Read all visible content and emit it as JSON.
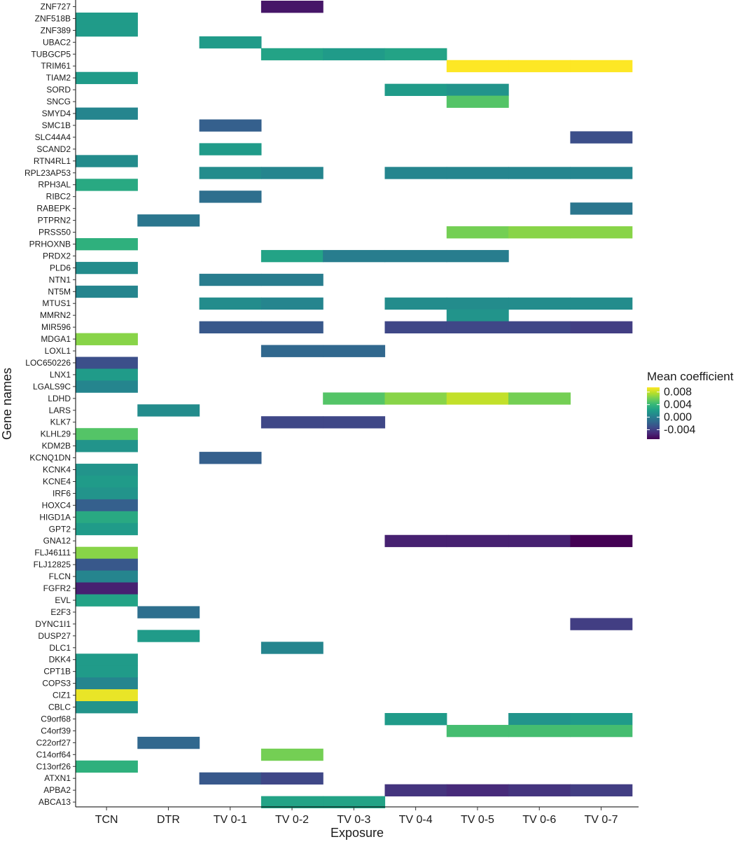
{
  "chart_data": {
    "type": "heatmap",
    "xlabel": "Exposure",
    "ylabel": "Gene names",
    "x": [
      "TCN",
      "DTR",
      "TV 0-1",
      "TV 0-2",
      "TV 0-3",
      "TV 0-4",
      "TV 0-5",
      "TV 0-6",
      "TV 0-7"
    ],
    "y": [
      "ZNF727",
      "ZNF518B",
      "ZNF389",
      "UBAC2",
      "TUBGCP5",
      "TRIM61",
      "TIAM2",
      "SORD",
      "SNCG",
      "SMYD4",
      "SMC1B",
      "SLC44A4",
      "SCAND2",
      "RTN4RL1",
      "RPL23AP53",
      "RPH3AL",
      "RIBC2",
      "RABEPK",
      "PTPRN2",
      "PRSS50",
      "PRHOXNB",
      "PRDX2",
      "PLD6",
      "NTN1",
      "NT5M",
      "MTUS1",
      "MMRN2",
      "MIR596",
      "MDGA1",
      "LOXL1",
      "LOC650226",
      "LNX1",
      "LGALS9C",
      "LDHD",
      "LARS",
      "KLK7",
      "KLHL29",
      "KDM2B",
      "KCNQ1DN",
      "KCNK4",
      "KCNE4",
      "IRF6",
      "HOXC4",
      "HIGD1A",
      "GPT2",
      "GNA12",
      "FLJ46111",
      "FLJ12825",
      "FLCN",
      "FGFR2",
      "EVL",
      "E2F3",
      "DYNC1I1",
      "DUSP27",
      "DLC1",
      "DKK4",
      "CPT1B",
      "COPS3",
      "CIZ1",
      "CBLC",
      "C9orf68",
      "C4orf39",
      "C22orf27",
      "C14orf64",
      "C13orf26",
      "ATXN1",
      "APBA2",
      "ABCA13"
    ],
    "cells": [
      [
        "ZNF727",
        "TV 0-2",
        -0.006
      ],
      [
        "ZNF518B",
        "TCN",
        0.002
      ],
      [
        "ZNF389",
        "TCN",
        0.002
      ],
      [
        "UBAC2",
        "TV 0-1",
        0.002
      ],
      [
        "TUBGCP5",
        "TV 0-2",
        0.0025
      ],
      [
        "TUBGCP5",
        "TV 0-3",
        0.002
      ],
      [
        "TUBGCP5",
        "TV 0-4",
        0.0025
      ],
      [
        "TRIM61",
        "TV 0-5",
        0.0095
      ],
      [
        "TRIM61",
        "TV 0-6",
        0.0095
      ],
      [
        "TRIM61",
        "TV 0-7",
        0.0095
      ],
      [
        "TIAM2",
        "TCN",
        0.002
      ],
      [
        "SORD",
        "TV 0-4",
        0.002
      ],
      [
        "SORD",
        "TV 0-5",
        0.0015
      ],
      [
        "SNCG",
        "TV 0-5",
        0.005
      ],
      [
        "SMYD4",
        "TCN",
        0.0005
      ],
      [
        "SMC1B",
        "TV 0-1",
        -0.002
      ],
      [
        "SLC44A4",
        "TV 0-7",
        -0.003
      ],
      [
        "SCAND2",
        "TV 0-1",
        0.002
      ],
      [
        "RTN4RL1",
        "TCN",
        0.001
      ],
      [
        "RPL23AP53",
        "TV 0-1",
        0.001
      ],
      [
        "RPL23AP53",
        "TV 0-2",
        0.0005
      ],
      [
        "RPL23AP53",
        "TV 0-4",
        0.0005
      ],
      [
        "RPL23AP53",
        "TV 0-5",
        0.0005
      ],
      [
        "RPL23AP53",
        "TV 0-6",
        0.0005
      ],
      [
        "RPL23AP53",
        "TV 0-7",
        0.0005
      ],
      [
        "RPH3AL",
        "TCN",
        0.003
      ],
      [
        "RIBC2",
        "TV 0-1",
        -0.001
      ],
      [
        "RABEPK",
        "TV 0-7",
        -0.0005
      ],
      [
        "PTPRN2",
        "DTR",
        -0.0005
      ],
      [
        "PRSS50",
        "TV 0-5",
        0.006
      ],
      [
        "PRSS50",
        "TV 0-6",
        0.0065
      ],
      [
        "PRSS50",
        "TV 0-7",
        0.0065
      ],
      [
        "PRHOXNB",
        "TCN",
        0.0035
      ],
      [
        "PRDX2",
        "TV 0-2",
        0.0025
      ],
      [
        "PRDX2",
        "TV 0-3",
        0
      ],
      [
        "PRDX2",
        "TV 0-4",
        0
      ],
      [
        "PRDX2",
        "TV 0-5",
        0
      ],
      [
        "PLD6",
        "TCN",
        0.001
      ],
      [
        "NTN1",
        "TV 0-1",
        0
      ],
      [
        "NTN1",
        "TV 0-2",
        0
      ],
      [
        "NT5M",
        "TCN",
        0.0005
      ],
      [
        "MTUS1",
        "TV 0-1",
        0.001
      ],
      [
        "MTUS1",
        "TV 0-2",
        0.0005
      ],
      [
        "MTUS1",
        "TV 0-4",
        0.001
      ],
      [
        "MTUS1",
        "TV 0-5",
        0.001
      ],
      [
        "MTUS1",
        "TV 0-6",
        0.001
      ],
      [
        "MTUS1",
        "TV 0-7",
        0.001
      ],
      [
        "MMRN2",
        "TV 0-5",
        0.0015
      ],
      [
        "MIR596",
        "TV 0-1",
        -0.0025
      ],
      [
        "MIR596",
        "TV 0-2",
        -0.0025
      ],
      [
        "MIR596",
        "TV 0-4",
        -0.0035
      ],
      [
        "MIR596",
        "TV 0-5",
        -0.0035
      ],
      [
        "MIR596",
        "TV 0-6",
        -0.0035
      ],
      [
        "MIR596",
        "TV 0-7",
        -0.004
      ],
      [
        "MDGA1",
        "TCN",
        0.0065
      ],
      [
        "LOXL1",
        "TV 0-2",
        -0.0015
      ],
      [
        "LOXL1",
        "TV 0-3",
        -0.0015
      ],
      [
        "LOC650226",
        "TCN",
        -0.003
      ],
      [
        "LNX1",
        "TCN",
        0.002
      ],
      [
        "LGALS9C",
        "TCN",
        0.0005
      ],
      [
        "LDHD",
        "TV 0-3",
        0.005
      ],
      [
        "LDHD",
        "TV 0-4",
        0.0065
      ],
      [
        "LDHD",
        "TV 0-5",
        0.008
      ],
      [
        "LDHD",
        "TV 0-6",
        0.006
      ],
      [
        "LARS",
        "DTR",
        0.001
      ],
      [
        "KLK7",
        "TV 0-2",
        -0.0035
      ],
      [
        "KLK7",
        "TV 0-3",
        -0.0035
      ],
      [
        "KLHL29",
        "TCN",
        0.005
      ],
      [
        "KDM2B",
        "TCN",
        0.0015
      ],
      [
        "KCNQ1DN",
        "TV 0-1",
        -0.002
      ],
      [
        "KCNK4",
        "TCN",
        0.0015
      ],
      [
        "KCNE4",
        "TCN",
        0.002
      ],
      [
        "IRF6",
        "TCN",
        0.0015
      ],
      [
        "HOXC4",
        "TCN",
        -0.002
      ],
      [
        "HIGD1A",
        "TCN",
        0.003
      ],
      [
        "GPT2",
        "TCN",
        0.002
      ],
      [
        "GNA12",
        "TV 0-4",
        -0.0055
      ],
      [
        "GNA12",
        "TV 0-5",
        -0.0055
      ],
      [
        "GNA12",
        "TV 0-6",
        -0.0055
      ],
      [
        "GNA12",
        "TV 0-7",
        -0.007
      ],
      [
        "FLJ46111",
        "TCN",
        0.0065
      ],
      [
        "FLJ12825",
        "TCN",
        -0.0025
      ],
      [
        "FLCN",
        "TCN",
        0.0005
      ],
      [
        "FGFR2",
        "TCN",
        -0.0055
      ],
      [
        "EVL",
        "TCN",
        0.0025
      ],
      [
        "E2F3",
        "DTR",
        -0.001
      ],
      [
        "DYNC1I1",
        "TV 0-7",
        -0.004
      ],
      [
        "DUSP27",
        "DTR",
        0.002
      ],
      [
        "DLC1",
        "TV 0-2",
        0.0005
      ],
      [
        "DKK4",
        "TCN",
        0.002
      ],
      [
        "CPT1B",
        "TCN",
        0.002
      ],
      [
        "COPS3",
        "TCN",
        0.0005
      ],
      [
        "CIZ1",
        "TCN",
        0.009
      ],
      [
        "CBLC",
        "TCN",
        0.0015
      ],
      [
        "C9orf68",
        "TV 0-4",
        0.002
      ],
      [
        "C9orf68",
        "TV 0-6",
        0.0015
      ],
      [
        "C9orf68",
        "TV 0-7",
        0.002
      ],
      [
        "C4orf39",
        "TV 0-5",
        0.0045
      ],
      [
        "C4orf39",
        "TV 0-6",
        0.0045
      ],
      [
        "C4orf39",
        "TV 0-7",
        0.0045
      ],
      [
        "C22orf27",
        "DTR",
        -0.0015
      ],
      [
        "C14orf64",
        "TV 0-2",
        0.006
      ],
      [
        "C13orf26",
        "TCN",
        0.0035
      ],
      [
        "ATXN1",
        "TV 0-1",
        -0.0025
      ],
      [
        "ATXN1",
        "TV 0-2",
        -0.0035
      ],
      [
        "APBA2",
        "TV 0-4",
        -0.0045
      ],
      [
        "APBA2",
        "TV 0-5",
        -0.005
      ],
      [
        "APBA2",
        "TV 0-6",
        -0.0045
      ],
      [
        "APBA2",
        "TV 0-7",
        -0.004
      ],
      [
        "ABCA13",
        "TV 0-2",
        0.0025
      ],
      [
        "ABCA13",
        "TV 0-3",
        0.0025
      ]
    ],
    "colorbar": {
      "title": "Mean coefficient",
      "range": [
        -0.007,
        0.0095
      ],
      "ticks": [
        0.008,
        0.004,
        0.0,
        -0.004
      ],
      "tick_labels": [
        "0.008",
        "0.004",
        "0.000",
        "-0.004"
      ],
      "colormap": "viridis",
      "stops": [
        "#440154",
        "#482878",
        "#3e4a89",
        "#31688e",
        "#26828e",
        "#1f9e89",
        "#35b779",
        "#6ece58",
        "#b5de2b",
        "#fde725"
      ]
    },
    "grid": false,
    "legend_position": "right"
  }
}
